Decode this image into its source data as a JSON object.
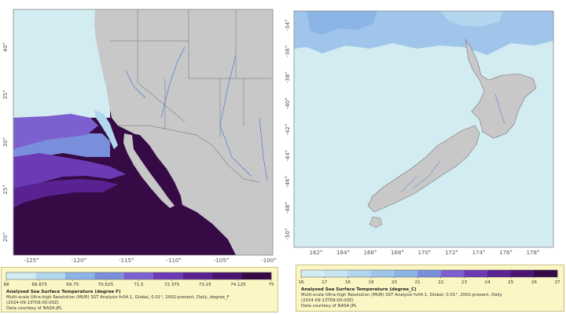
{
  "left_map": {
    "longitude_labels": [
      "-125°",
      "-120°",
      "-115°",
      "-110°",
      "-105°",
      "-100°"
    ],
    "latitude_labels": [
      "40°",
      "35°",
      "30°",
      "25°",
      "20°"
    ],
    "legend": {
      "ticks": [
        "68",
        "68.875",
        "69.75",
        "70.625",
        "71.5",
        "72.375",
        "73.25",
        "74.125",
        "75"
      ],
      "colors": [
        "#d3ecf2",
        "#b3d6ef",
        "#8ab5e6",
        "#7a8fdb",
        "#7d60cf",
        "#6c3ab5",
        "#5a2192",
        "#4a1470",
        "#350a45"
      ],
      "title": "Analysed Sea Surface Temperature (degree F)",
      "line1": "Multi-scale Ultra-high Resolution (MUR) SST Analysis fv04.1, Global, 0.01°, 2002-present, Daily, degree_F",
      "line2": "(2024-09-13T09:00:00Z)",
      "line3": "Data courtesy of NASA JPL"
    }
  },
  "right_map": {
    "longitude_labels": [
      "162°",
      "164°",
      "166°",
      "168°",
      "170°",
      "172°",
      "174°",
      "176°",
      "178°"
    ],
    "latitude_labels": [
      "-34°",
      "-36°",
      "-38°",
      "-40°",
      "-42°",
      "-44°",
      "-46°",
      "-48°",
      "-50°"
    ],
    "legend": {
      "ticks": [
        "16",
        "17",
        "18",
        "19",
        "20",
        "21",
        "22",
        "23",
        "24",
        "25",
        "26",
        "27"
      ],
      "colors": [
        "#d3ecf2",
        "#c6e4f1",
        "#b3d6ef",
        "#9fc6ea",
        "#8ab5e6",
        "#7a8fdb",
        "#7d60cf",
        "#6c3ab5",
        "#5a2192",
        "#4a1470",
        "#350a45"
      ],
      "title": "Analysed Sea Surface Temperature (degree_C)",
      "line1": "Multi-scale Ultra-high Resolution (MUR) SST Analysis fv04.1, Global, 0.01°, 2002-present, Daily",
      "line2": "(2024-09-13T09:00:00Z)",
      "line3": "Data courtesy of NASA JPL"
    }
  },
  "colors": {
    "land": "#c8c8c8",
    "ocean_light": "#d3ecf2",
    "ocean_dark": "#350a45",
    "border": "#8a8a8a",
    "river": "#3a6fd8"
  }
}
